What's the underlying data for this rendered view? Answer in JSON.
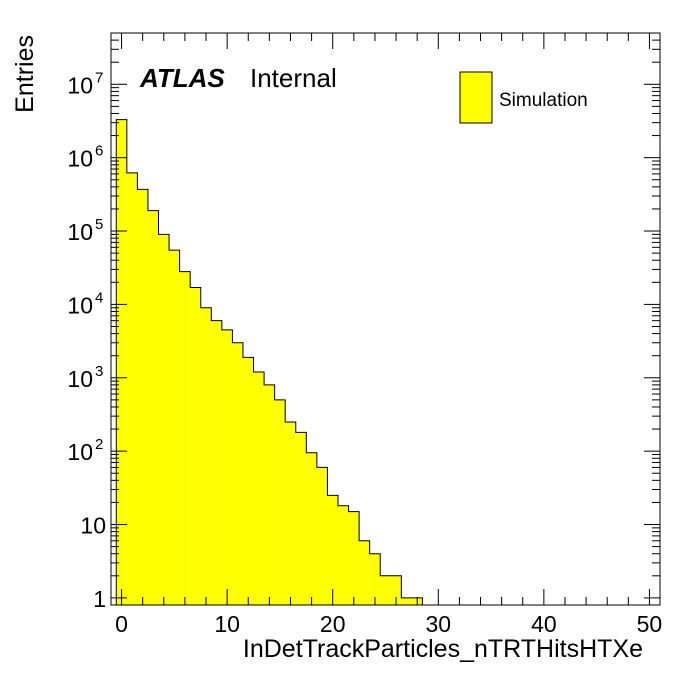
{
  "chart_data": {
    "type": "bar",
    "title": "",
    "xlabel": "InDetTrackParticles_nTRTHitsHTXe",
    "ylabel": "Entries",
    "xlim": [
      -1,
      51
    ],
    "ylim": [
      0.8,
      50000000
    ],
    "log_y": true,
    "grid": false,
    "bin_width": 1,
    "bin_start": -0.5,
    "fill_color": "#ffff00",
    "line_color": "#000000",
    "x_ticks": [
      0,
      10,
      20,
      30,
      40,
      50
    ],
    "y_ticks": [
      {
        "value": 1,
        "base": "1",
        "exp": ""
      },
      {
        "value": 10,
        "base": "10",
        "exp": ""
      },
      {
        "value": 100,
        "base": "10",
        "exp": "2"
      },
      {
        "value": 1000,
        "base": "10",
        "exp": "3"
      },
      {
        "value": 10000,
        "base": "10",
        "exp": "4"
      },
      {
        "value": 100000,
        "base": "10",
        "exp": "5"
      },
      {
        "value": 1000000,
        "base": "10",
        "exp": "6"
      },
      {
        "value": 10000000,
        "base": "10",
        "exp": "7"
      }
    ],
    "series": [
      {
        "name": "Simulation",
        "values": [
          3300000,
          620000,
          370000,
          190000,
          90000,
          55000,
          28000,
          17000,
          9000,
          6000,
          4500,
          3000,
          1900,
          1200,
          800,
          500,
          250,
          180,
          95,
          60,
          25,
          18,
          15,
          6,
          4,
          2,
          2,
          1,
          1
        ]
      }
    ],
    "legend": {
      "position": "top-right",
      "entries": [
        "Simulation"
      ]
    },
    "annotations": {
      "atlas": "ATLAS",
      "status": "Internal"
    }
  }
}
